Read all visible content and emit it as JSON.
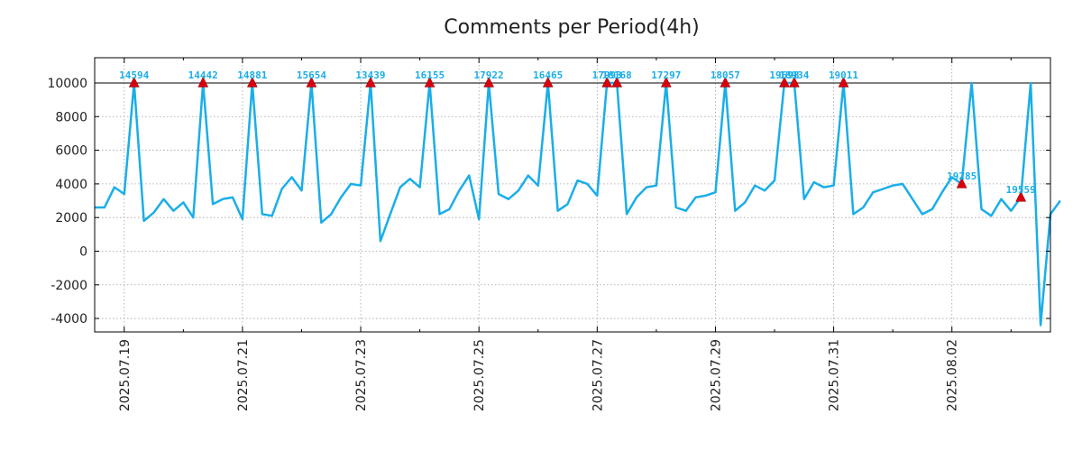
{
  "chart_data": {
    "type": "line",
    "title": "Comments per Period(4h)",
    "xlabel": "",
    "ylabel": "",
    "ylim": [
      -4800,
      11500
    ],
    "yticks": [
      -4000,
      -2000,
      0,
      2000,
      4000,
      6000,
      8000,
      10000
    ],
    "ytick_labels": [
      "-4000",
      "-2000",
      "0",
      "2000",
      "4000",
      "6000",
      "8000",
      "10000"
    ],
    "cap_value": 10000,
    "x_start": "2025.07.18 12:00",
    "period_hours": 4,
    "xlim_index": [
      0,
      97
    ],
    "xticks": [
      {
        "index": 3,
        "label": "2025.07.19"
      },
      {
        "index": 15,
        "label": "2025.07.21"
      },
      {
        "index": 27,
        "label": "2025.07.23"
      },
      {
        "index": 39,
        "label": "2025.07.25"
      },
      {
        "index": 51,
        "label": "2025.07.27"
      },
      {
        "index": 63,
        "label": "2025.07.29"
      },
      {
        "index": 75,
        "label": "2025.07.31"
      },
      {
        "index": 87,
        "label": "2025.08.02"
      }
    ],
    "minor_tick_step": 6,
    "grid": true,
    "series": [
      {
        "name": "Comments",
        "color": "#1aaee8",
        "values": [
          2600,
          2600,
          3800,
          3400,
          10000,
          1800,
          2300,
          3100,
          2400,
          2900,
          2000,
          10000,
          2800,
          3100,
          3200,
          1900,
          10000,
          2200,
          2100,
          3700,
          4400,
          3600,
          10000,
          1700,
          2200,
          3200,
          4000,
          3900,
          10000,
          600,
          2200,
          3800,
          4300,
          3800,
          10000,
          2200,
          2500,
          3600,
          4500,
          1900,
          10000,
          3400,
          3100,
          3600,
          4500,
          3900,
          10000,
          2400,
          2800,
          4200,
          4000,
          3300,
          10000,
          10000,
          2200,
          3200,
          3800,
          3900,
          10000,
          2600,
          2400,
          3200,
          3300,
          3500,
          10000,
          2400,
          2900,
          3900,
          3600,
          4200,
          10000,
          10000,
          3100,
          4100,
          3800,
          3900,
          10000,
          2200,
          2600,
          3500,
          3700,
          3900,
          4000,
          3100,
          2200,
          2500,
          3500,
          4400,
          4000,
          10000,
          2500,
          2100,
          3100,
          2400,
          3200,
          10000,
          -4400,
          2200,
          3000
        ]
      }
    ],
    "peaks": {
      "marker_color": "#d9000e",
      "label_color": "#1aaee8",
      "points": [
        {
          "index": 4,
          "label": "14594"
        },
        {
          "index": 11,
          "label": "14442"
        },
        {
          "index": 16,
          "label": "14881"
        },
        {
          "index": 22,
          "label": "15654"
        },
        {
          "index": 28,
          "label": "13439"
        },
        {
          "index": 34,
          "label": "16155"
        },
        {
          "index": 40,
          "label": "17922"
        },
        {
          "index": 46,
          "label": "16465"
        },
        {
          "index": 52,
          "label": "17993"
        },
        {
          "index": 53,
          "label": "18168"
        },
        {
          "index": 58,
          "label": "17297"
        },
        {
          "index": 64,
          "label": "18057"
        },
        {
          "index": 70,
          "label": "19698"
        },
        {
          "index": 71,
          "label": "18934"
        },
        {
          "index": 76,
          "label": "19011"
        },
        {
          "index": 88,
          "label": "19285"
        },
        {
          "index": 94,
          "label": "19559"
        }
      ]
    }
  }
}
